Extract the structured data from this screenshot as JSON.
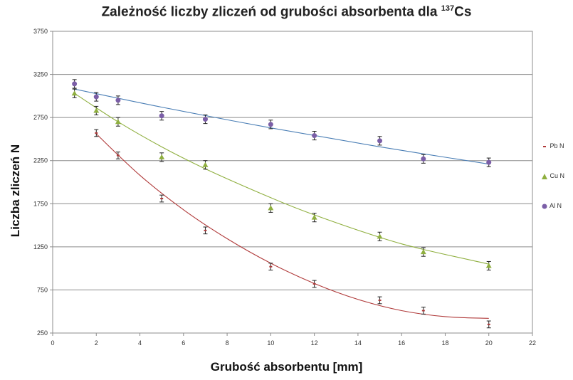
{
  "chart_data": {
    "type": "scatter",
    "title": "Zależność liczby zliczeń od grubości absorbenta dla ",
    "title_sup": "137",
    "title_tail": "Cs",
    "xlabel": "Grubość absorbentu [mm]",
    "ylabel": "Liczba zliczeń N",
    "xlim": [
      0,
      22
    ],
    "ylim": [
      250,
      3750
    ],
    "x_ticks": [
      0,
      2,
      4,
      6,
      8,
      10,
      12,
      14,
      16,
      18,
      20,
      22
    ],
    "y_ticks": [
      250,
      750,
      1250,
      1750,
      2250,
      2750,
      3250,
      3750
    ],
    "grid": "horizontal",
    "legend_placement": "right",
    "series": [
      {
        "name": "Pb N",
        "color": "#b03a3a",
        "marker": "dash",
        "x": [
          2,
          3,
          5,
          7,
          10,
          12,
          15,
          17,
          20
        ],
        "y": [
          2570,
          2310,
          1810,
          1440,
          1020,
          820,
          630,
          510,
          350
        ],
        "err": 40,
        "trend": [
          [
            2,
            2560
          ],
          [
            4,
            2080
          ],
          [
            6,
            1680
          ],
          [
            8,
            1345
          ],
          [
            10,
            1060
          ],
          [
            12,
            825
          ],
          [
            14,
            640
          ],
          [
            16,
            510
          ],
          [
            18,
            440
          ],
          [
            20,
            420
          ]
        ]
      },
      {
        "name": "Cu N",
        "color": "#8faf3f",
        "marker": "triangle",
        "x": [
          1,
          2,
          3,
          5,
          7,
          10,
          12,
          15,
          17,
          20
        ],
        "y": [
          3030,
          2830,
          2700,
          2290,
          2200,
          1700,
          1590,
          1370,
          1190,
          1030
        ],
        "err": 50,
        "trend": [
          [
            1,
            3030
          ],
          [
            3,
            2700
          ],
          [
            5,
            2410
          ],
          [
            7,
            2155
          ],
          [
            10,
            1820
          ],
          [
            12,
            1620
          ],
          [
            15,
            1360
          ],
          [
            17,
            1220
          ],
          [
            20,
            1050
          ]
        ]
      },
      {
        "name": "Al N",
        "color": "#7b5ea7",
        "marker": "circle",
        "x": [
          1,
          2,
          3,
          5,
          7,
          10,
          12,
          15,
          17,
          20
        ],
        "y": [
          3140,
          2990,
          2950,
          2770,
          2730,
          2670,
          2540,
          2480,
          2270,
          2230
        ],
        "err": 50,
        "trend_color": "#4a7eb5",
        "trend": [
          [
            1,
            3080
          ],
          [
            5,
            2870
          ],
          [
            10,
            2630
          ],
          [
            15,
            2410
          ],
          [
            20,
            2210
          ]
        ]
      }
    ]
  }
}
